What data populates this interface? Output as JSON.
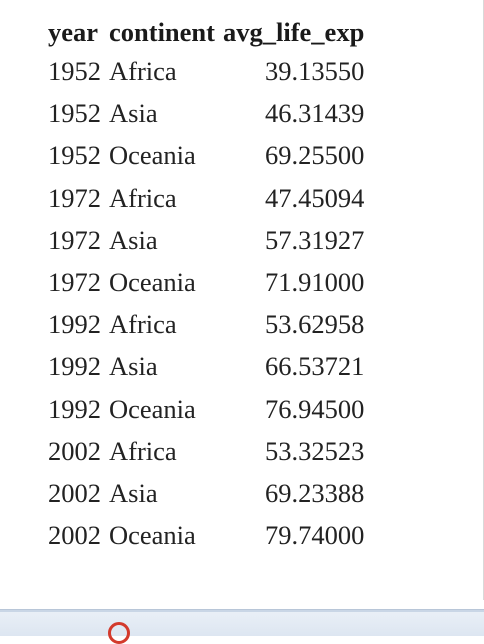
{
  "table": {
    "headers": [
      "year",
      "continent",
      "avg_life_exp"
    ],
    "rows": [
      [
        "1952",
        "Africa",
        "39.13550"
      ],
      [
        "1952",
        "Asia",
        "46.31439"
      ],
      [
        "1952",
        "Oceania",
        "69.25500"
      ],
      [
        "1972",
        "Africa",
        "47.45094"
      ],
      [
        "1972",
        "Asia",
        "57.31927"
      ],
      [
        "1972",
        "Oceania",
        "71.91000"
      ],
      [
        "1992",
        "Africa",
        "53.62958"
      ],
      [
        "1992",
        "Asia",
        "66.53721"
      ],
      [
        "1992",
        "Oceania",
        "76.94500"
      ],
      [
        "2002",
        "Africa",
        "53.32523"
      ],
      [
        "2002",
        "Asia",
        "69.23388"
      ],
      [
        "2002",
        "Oceania",
        "79.74000"
      ]
    ]
  },
  "bottom_bar": {
    "icon": "red-circle-icon"
  },
  "colors": {
    "text": "#222222",
    "bar_background": "#dde6f1",
    "icon_accent": "#d33a2c"
  }
}
